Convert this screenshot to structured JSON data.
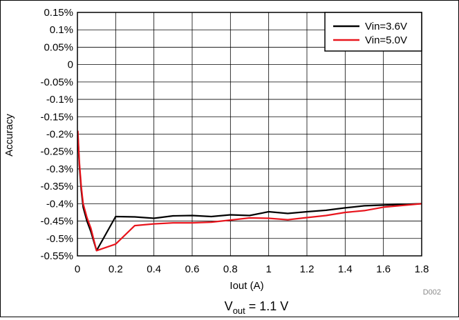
{
  "chart_data": {
    "type": "line",
    "xlabel": "Iout (A)",
    "ylabel": "Accuracy",
    "xlim": [
      0,
      1.8
    ],
    "ylim": [
      -0.55,
      0.15
    ],
    "x_ticks": [
      "0",
      "0.2",
      "0.4",
      "0.6",
      "0.8",
      "1",
      "1.2",
      "1.4",
      "1.6",
      "1.8"
    ],
    "y_ticks": [
      "0.15%",
      "0.1%",
      "0.05%",
      "0",
      "-0.05%",
      "-0.1%",
      "-0.15%",
      "-0.2%",
      "-0.25%",
      "-0.3%",
      "-0.35%",
      "-0.4%",
      "-0.45%",
      "-0.5%",
      "-0.55%"
    ],
    "grid": true,
    "legend_position": "top-right",
    "figure_id": "D002",
    "caption_main": "V",
    "caption_sub": "out",
    "caption_rest": " = 1.1 V",
    "series": [
      {
        "name": "Vin=3.6V",
        "color": "#000000",
        "x": [
          0.002,
          0.01,
          0.02,
          0.03,
          0.05,
          0.07,
          0.1,
          0.2,
          0.3,
          0.4,
          0.5,
          0.6,
          0.7,
          0.8,
          0.9,
          1.0,
          1.1,
          1.2,
          1.3,
          1.4,
          1.5,
          1.6,
          1.7,
          1.8
        ],
        "y": [
          -0.2,
          -0.29,
          -0.36,
          -0.41,
          -0.45,
          -0.48,
          -0.535,
          -0.437,
          -0.438,
          -0.442,
          -0.435,
          -0.434,
          -0.437,
          -0.432,
          -0.434,
          -0.423,
          -0.428,
          -0.423,
          -0.419,
          -0.412,
          -0.406,
          -0.404,
          -0.402,
          -0.4
        ]
      },
      {
        "name": "Vin=5.0V",
        "color": "#e8141c",
        "x": [
          0.002,
          0.01,
          0.02,
          0.03,
          0.05,
          0.07,
          0.1,
          0.2,
          0.3,
          0.4,
          0.5,
          0.6,
          0.7,
          0.8,
          0.9,
          1.0,
          1.1,
          1.2,
          1.3,
          1.4,
          1.5,
          1.6,
          1.7,
          1.8
        ],
        "y": [
          -0.19,
          -0.28,
          -0.35,
          -0.4,
          -0.44,
          -0.47,
          -0.535,
          -0.516,
          -0.463,
          -0.458,
          -0.455,
          -0.455,
          -0.453,
          -0.447,
          -0.441,
          -0.442,
          -0.446,
          -0.44,
          -0.434,
          -0.425,
          -0.42,
          -0.41,
          -0.405,
          -0.4
        ]
      }
    ]
  }
}
